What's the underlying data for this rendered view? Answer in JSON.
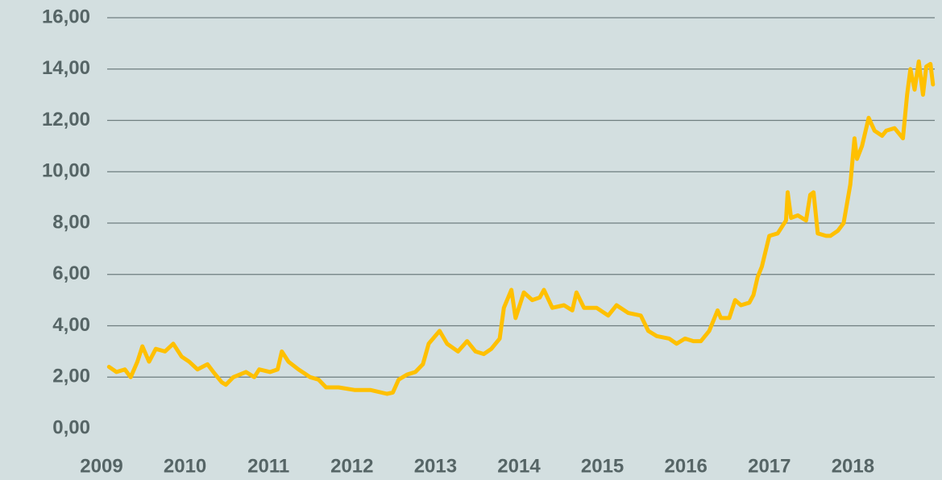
{
  "chart_data": {
    "type": "line",
    "x": [
      2009.07,
      2009.16,
      2009.26,
      2009.33,
      2009.41,
      2009.47,
      2009.55,
      2009.63,
      2009.74,
      2009.84,
      2009.94,
      2010.03,
      2010.13,
      2010.25,
      2010.32,
      2010.42,
      2010.47,
      2010.56,
      2010.71,
      2010.81,
      2010.87,
      2011.0,
      2011.09,
      2011.14,
      2011.22,
      2011.34,
      2011.48,
      2011.58,
      2011.67,
      2011.82,
      2012.01,
      2012.2,
      2012.4,
      2012.47,
      2012.54,
      2012.64,
      2012.74,
      2012.83,
      2012.9,
      2013.03,
      2013.12,
      2013.25,
      2013.36,
      2013.46,
      2013.56,
      2013.65,
      2013.75,
      2013.8,
      2013.89,
      2013.94,
      2014.04,
      2014.14,
      2014.23,
      2014.28,
      2014.38,
      2014.52,
      2014.62,
      2014.67,
      2014.76,
      2014.91,
      2015.05,
      2015.15,
      2015.29,
      2015.44,
      2015.53,
      2015.63,
      2015.78,
      2015.87,
      2015.97,
      2016.07,
      2016.16,
      2016.26,
      2016.36,
      2016.4,
      2016.5,
      2016.57,
      2016.64,
      2016.74,
      2016.79,
      2016.84,
      2016.89,
      2016.98,
      2017.08,
      2017.18,
      2017.2,
      2017.24,
      2017.32,
      2017.42,
      2017.47,
      2017.51,
      2017.56,
      2017.66,
      2017.71,
      2017.8,
      2017.87,
      2017.95,
      2018.0,
      2018.03,
      2018.09,
      2018.17,
      2018.24,
      2018.33,
      2018.38,
      2018.48,
      2018.58,
      2018.63,
      2018.67,
      2018.72,
      2018.77,
      2018.82,
      2018.86,
      2018.91,
      2018.94
    ],
    "series": [
      {
        "color": "#ffc000",
        "values": [
          2.4,
          2.2,
          2.3,
          2.0,
          2.6,
          3.2,
          2.6,
          3.1,
          3.0,
          3.3,
          2.8,
          2.6,
          2.3,
          2.5,
          2.2,
          1.8,
          1.7,
          2.0,
          2.2,
          2.0,
          2.3,
          2.2,
          2.3,
          3.0,
          2.6,
          2.3,
          2.0,
          1.9,
          1.6,
          1.6,
          1.5,
          1.5,
          1.35,
          1.4,
          1.9,
          2.1,
          2.2,
          2.5,
          3.3,
          3.8,
          3.3,
          3.0,
          3.4,
          3.0,
          2.9,
          3.1,
          3.5,
          4.7,
          5.4,
          4.3,
          5.3,
          5.0,
          5.1,
          5.4,
          4.7,
          4.8,
          4.6,
          5.3,
          4.7,
          4.7,
          4.4,
          4.8,
          4.5,
          4.4,
          3.8,
          3.6,
          3.5,
          3.3,
          3.5,
          3.4,
          3.4,
          3.8,
          4.6,
          4.3,
          4.3,
          5.0,
          4.8,
          4.9,
          5.2,
          5.9,
          6.3,
          7.5,
          7.6,
          8.1,
          9.2,
          8.2,
          8.3,
          8.1,
          9.1,
          9.2,
          7.6,
          7.5,
          7.5,
          7.7,
          8.0,
          9.5,
          11.3,
          10.5,
          11.0,
          12.1,
          11.6,
          11.4,
          11.6,
          11.7,
          11.3,
          13.0,
          14.0,
          13.2,
          14.3,
          13.0,
          14.1,
          14.2,
          13.4
        ]
      }
    ],
    "xlim": [
      2009,
      2019
    ],
    "xticks": [
      2009,
      2010,
      2011,
      2012,
      2013,
      2014,
      2015,
      2016,
      2017,
      2018
    ],
    "ylim": [
      0,
      16
    ],
    "yticks": [
      {
        "value": 0,
        "label": "0,00"
      },
      {
        "value": 2,
        "label": "2,00"
      },
      {
        "value": 4,
        "label": "4,00"
      },
      {
        "value": 6,
        "label": "6,00"
      },
      {
        "value": 8,
        "label": "8,00"
      },
      {
        "value": 10,
        "label": "10,00"
      },
      {
        "value": 12,
        "label": "12,00"
      },
      {
        "value": 14,
        "label": "14,00"
      },
      {
        "value": 16,
        "label": "16,00"
      }
    ],
    "grid": true
  }
}
